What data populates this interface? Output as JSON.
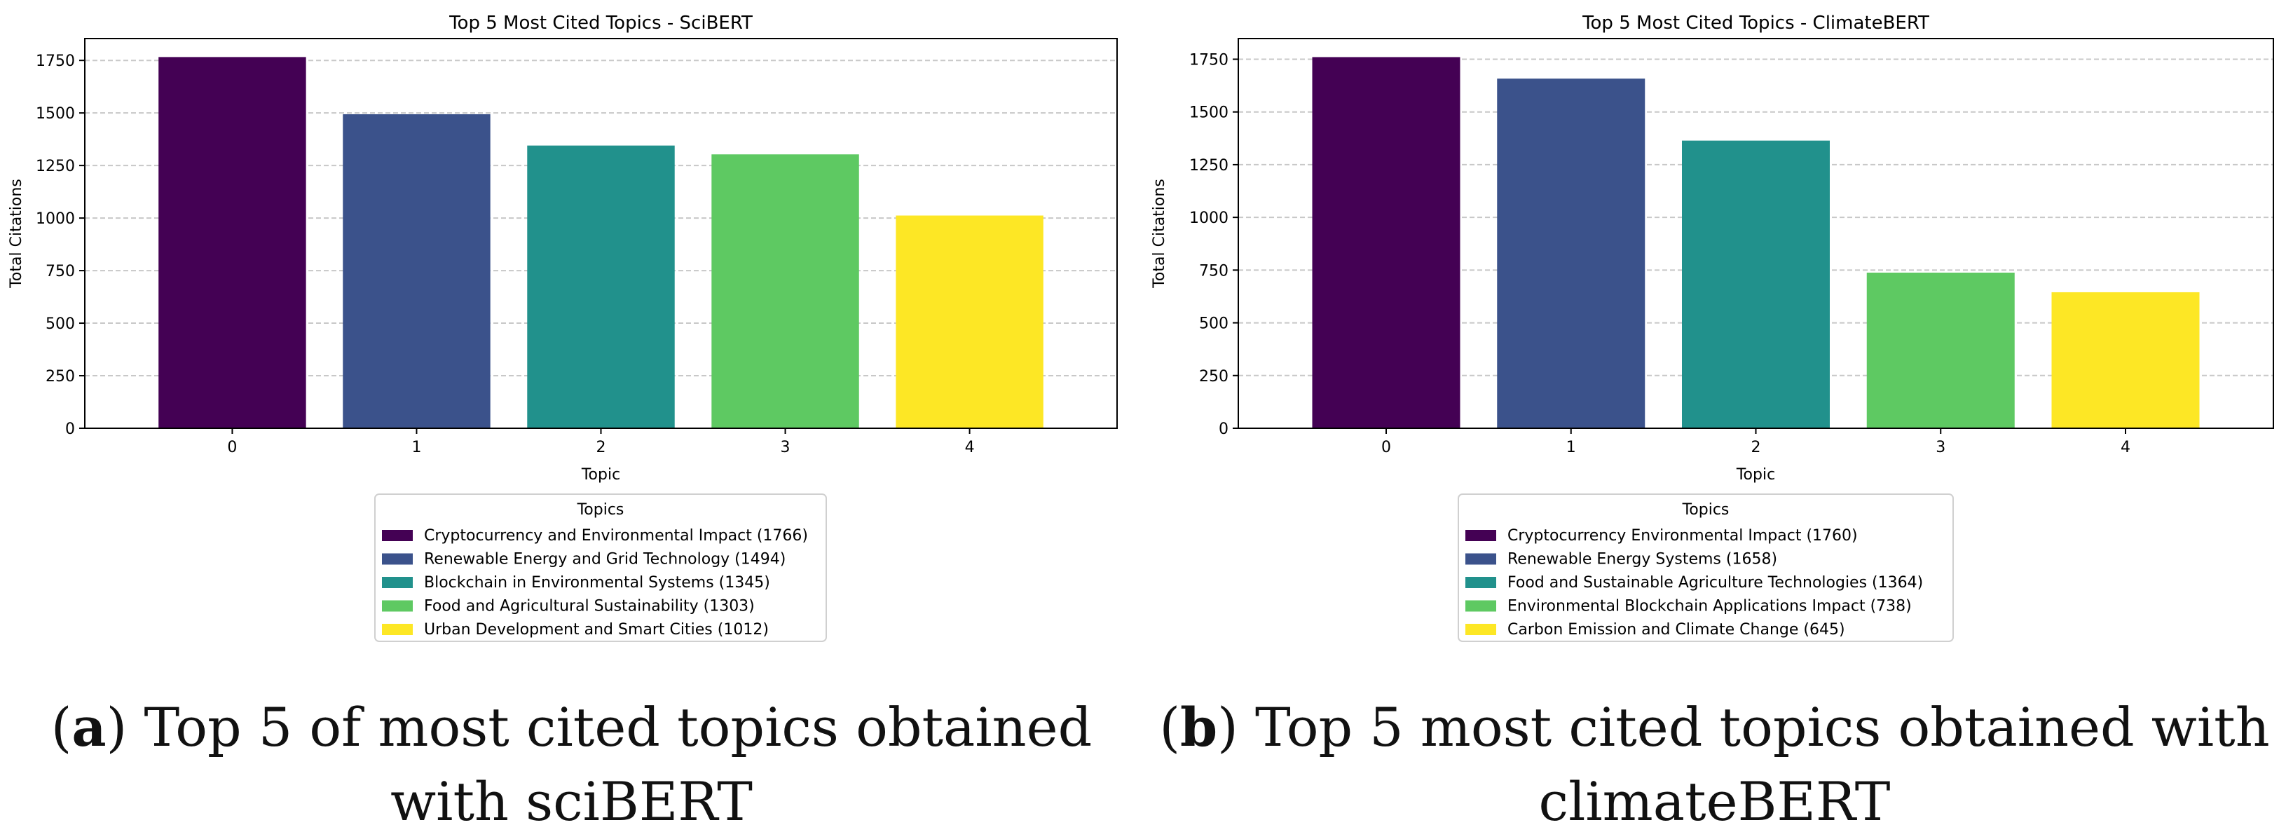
{
  "chart_data": [
    {
      "type": "bar",
      "title": "Top 5 Most Cited Topics - SciBERT",
      "xlabel": "Topic",
      "ylabel": "Total Citations",
      "categories": [
        "0",
        "1",
        "2",
        "3",
        "4"
      ],
      "values": [
        1766,
        1494,
        1345,
        1303,
        1012
      ],
      "colors": [
        "#440154",
        "#3b528b",
        "#21918c",
        "#5ec962",
        "#fde725"
      ],
      "ylim": [
        0,
        1854
      ],
      "yticks": [
        0,
        250,
        500,
        750,
        1000,
        1250,
        1500,
        1750
      ],
      "grid": "y-dashed",
      "legend": {
        "title": "Topics",
        "position": "below",
        "entries": [
          "Cryptocurrency and Environmental Impact (1766)",
          "Renewable Energy and Grid Technology (1494)",
          "Blockchain in Environmental Systems (1345)",
          "Food and Agricultural Sustainability (1303)",
          "Urban Development and Smart Cities (1012)"
        ]
      }
    },
    {
      "type": "bar",
      "title": "Top 5 Most Cited Topics - ClimateBERT",
      "xlabel": "Topic",
      "ylabel": "Total Citations",
      "categories": [
        "0",
        "1",
        "2",
        "3",
        "4"
      ],
      "values": [
        1760,
        1658,
        1364,
        738,
        645
      ],
      "colors": [
        "#440154",
        "#3b528b",
        "#21918c",
        "#5ec962",
        "#fde725"
      ],
      "ylim": [
        0,
        1848
      ],
      "yticks": [
        0,
        250,
        500,
        750,
        1000,
        1250,
        1500,
        1750
      ],
      "grid": "y-dashed",
      "legend": {
        "title": "Topics",
        "position": "below",
        "entries": [
          "Cryptocurrency Environmental Impact (1760)",
          "Renewable Energy Systems (1658)",
          "Food and Sustainable Agriculture Technologies (1364)",
          "Environmental Blockchain Applications Impact (738)",
          "Carbon Emission and Climate Change (645)"
        ]
      }
    }
  ],
  "captions": [
    {
      "letter": "a",
      "text": "Top 5 of most cited topics obtained with sciBERT"
    },
    {
      "letter": "b",
      "text": "Top 5 most cited topics obtained with climateBERT"
    }
  ]
}
